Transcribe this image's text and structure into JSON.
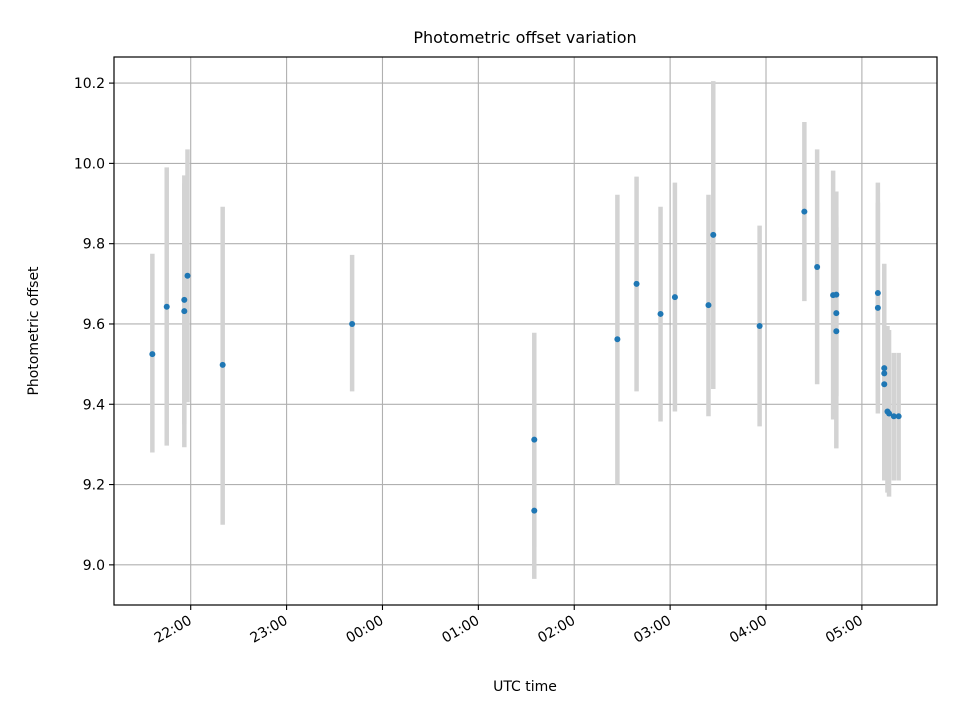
{
  "chart_data": {
    "type": "scatter",
    "title": "Photometric offset variation",
    "xlabel": "UTC time",
    "ylabel": "Photometric offset",
    "x_unit": "UTC time of day",
    "x_range": [
      "21:12",
      "05:47"
    ],
    "ylim": [
      8.9,
      10.265
    ],
    "grid": true,
    "x_ticks": [
      "22:00",
      "23:00",
      "00:00",
      "01:00",
      "02:00",
      "03:00",
      "04:00",
      "05:00"
    ],
    "y_ticks": [
      "9.0",
      "9.2",
      "9.4",
      "9.6",
      "9.8",
      "10.0",
      "10.2"
    ],
    "colors": {
      "points": "#1f77b4",
      "error_bars": "#d3d3d3",
      "grid": "#b0b0b0"
    },
    "series": [
      {
        "points": [
          {
            "x": "21:36",
            "y": 9.525,
            "err_low": 9.28,
            "err_high": 9.775
          },
          {
            "x": "21:45",
            "y": 9.643,
            "err_low": 9.297,
            "err_high": 9.99
          },
          {
            "x": "21:56",
            "y": 9.66,
            "err_low": 9.293,
            "err_high": 9.97
          },
          {
            "x": "21:56",
            "y": 9.632,
            "err_low": 9.35,
            "err_high": 9.95
          },
          {
            "x": "21:58",
            "y": 9.72,
            "err_low": 9.405,
            "err_high": 10.035
          },
          {
            "x": "22:20",
            "y": 9.498,
            "err_low": 9.1,
            "err_high": 9.892
          },
          {
            "x": "23:41",
            "y": 9.6,
            "err_low": 9.432,
            "err_high": 9.772
          },
          {
            "x": "01:35",
            "y": 9.312,
            "err_low": 9.045,
            "err_high": 9.578
          },
          {
            "x": "01:35",
            "y": 9.135,
            "err_low": 8.965,
            "err_high": 9.3
          },
          {
            "x": "02:27",
            "y": 9.562,
            "err_low": 9.2,
            "err_high": 9.922
          },
          {
            "x": "02:39",
            "y": 9.7,
            "err_low": 9.432,
            "err_high": 9.967
          },
          {
            "x": "02:54",
            "y": 9.625,
            "err_low": 9.357,
            "err_high": 9.892
          },
          {
            "x": "03:03",
            "y": 9.667,
            "err_low": 9.382,
            "err_high": 9.952
          },
          {
            "x": "03:24",
            "y": 9.647,
            "err_low": 9.37,
            "err_high": 9.922
          },
          {
            "x": "03:27",
            "y": 9.822,
            "err_low": 9.438,
            "err_high": 10.205
          },
          {
            "x": "03:56",
            "y": 9.595,
            "err_low": 9.345,
            "err_high": 9.845
          },
          {
            "x": "04:24",
            "y": 9.88,
            "err_low": 9.657,
            "err_high": 10.103
          },
          {
            "x": "04:32",
            "y": 9.742,
            "err_low": 9.45,
            "err_high": 10.035
          },
          {
            "x": "04:42",
            "y": 9.672,
            "err_low": 9.362,
            "err_high": 9.982
          },
          {
            "x": "04:44",
            "y": 9.673,
            "err_low": 9.42,
            "err_high": 9.93
          },
          {
            "x": "04:44",
            "y": 9.627,
            "err_low": 9.42,
            "err_high": 9.84
          },
          {
            "x": "04:44",
            "y": 9.582,
            "err_low": 9.29,
            "err_high": 9.87
          },
          {
            "x": "05:10",
            "y": 9.677,
            "err_low": 9.405,
            "err_high": 9.952
          },
          {
            "x": "05:10",
            "y": 9.64,
            "err_low": 9.377,
            "err_high": 9.902
          },
          {
            "x": "05:14",
            "y": 9.49,
            "err_low": 9.21,
            "err_high": 9.75
          },
          {
            "x": "05:14",
            "y": 9.477,
            "err_low": 9.22,
            "err_high": 9.73
          },
          {
            "x": "05:14",
            "y": 9.45,
            "err_low": 9.21,
            "err_high": 9.69
          },
          {
            "x": "05:16",
            "y": 9.382,
            "err_low": 9.18,
            "err_high": 9.595
          },
          {
            "x": "05:17",
            "y": 9.377,
            "err_low": 9.17,
            "err_high": 9.585
          },
          {
            "x": "05:20",
            "y": 9.37,
            "err_low": 9.21,
            "err_high": 9.528
          },
          {
            "x": "05:23",
            "y": 9.37,
            "err_low": 9.21,
            "err_high": 9.528
          }
        ]
      }
    ]
  }
}
